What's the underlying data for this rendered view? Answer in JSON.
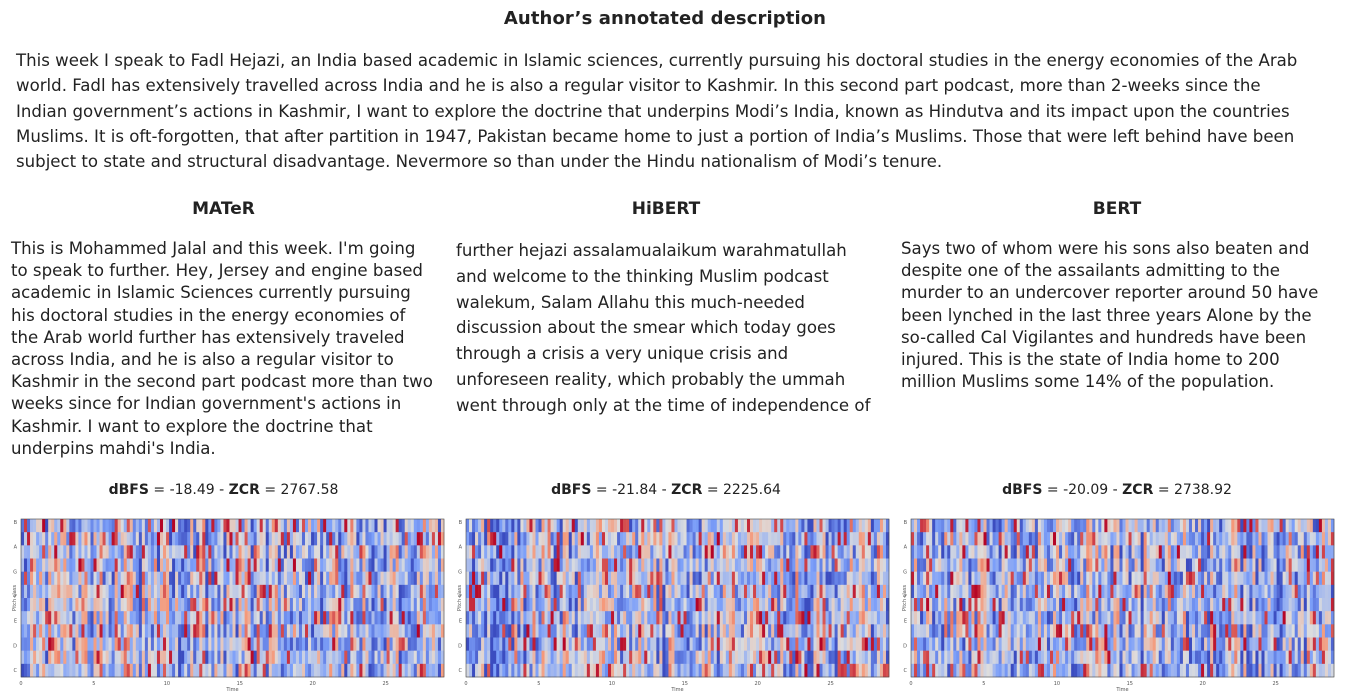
{
  "header": {
    "title": "Author’s annotated description",
    "description": "This week I speak to Fadl Hejazi, an India based academic in Islamic sciences, currently pursuing his doctoral studies in the energy economies of the Arab world. Fadl has extensively travelled across India and he is also a regular visitor to Kashmir. In this second part podcast, more than 2-weeks since the Indian government’s actions in Kashmir, I want to explore the doctrine that underpins Modi’s India, known as Hindutva and its impact upon the countries Muslims. It is oft-forgotten, that after partition in 1947, Pakistan became home to just a portion of India’s Muslims. Those that were left behind have been subject to state and structural disadvantage. Nevermore so than under the Hindu nationalism of Modi’s tenure."
  },
  "columns": [
    {
      "name": "MATeR",
      "text": "This is Mohammed Jalal and this week. I'm going to speak to further. Hey, Jersey and engine based academic in Islamic Sciences currently pursuing his doctoral studies in the energy economies of the Arab world further has extensively traveled across India, and he is also a regular visitor to Kashmir in the second part podcast more than two weeks since for Indian government's actions in Kashmir. I want to explore the doctrine that underpins mahdi's India.",
      "dbfs_label": "dBFS",
      "dbfs": "-18.49",
      "zcr_label": "ZCR",
      "zcr": "2767.58"
    },
    {
      "name": "HiBERT",
      "text": "further hejazi assalamualaikum warahmatullah and welcome to the thinking Muslim podcast walekum, Salam Allahu this much-needed discussion about the smear which today goes through a crisis a very unique crisis and unforeseen reality, which probably the ummah went through only at the time of independence of",
      "dbfs_label": "dBFS",
      "dbfs": "-21.84",
      "zcr_label": "ZCR",
      "zcr": "2225.64"
    },
    {
      "name": "BERT",
      "text": "Says two of whom were his sons also beaten and despite one of the assailants admitting to the murder to an undercover reporter around 50 have been lynched in the last three years Alone by the so-called Cal Vigilantes and hundreds have been injured. This is the state of India home to 200 million Muslims some 14% of the population.",
      "dbfs_label": "dBFS",
      "dbfs": "-20.09",
      "zcr_label": "ZCR",
      "zcr": "2738.92"
    }
  ],
  "spectrogram": {
    "y_label": "Pitch class",
    "x_label": "Time",
    "pitch_classes": [
      "C",
      "D",
      "E",
      "F",
      "G",
      "A",
      "B"
    ],
    "time_ticks": [
      "0",
      "5",
      "10",
      "15",
      "20",
      "25"
    ],
    "colormap": "coolwarm"
  }
}
